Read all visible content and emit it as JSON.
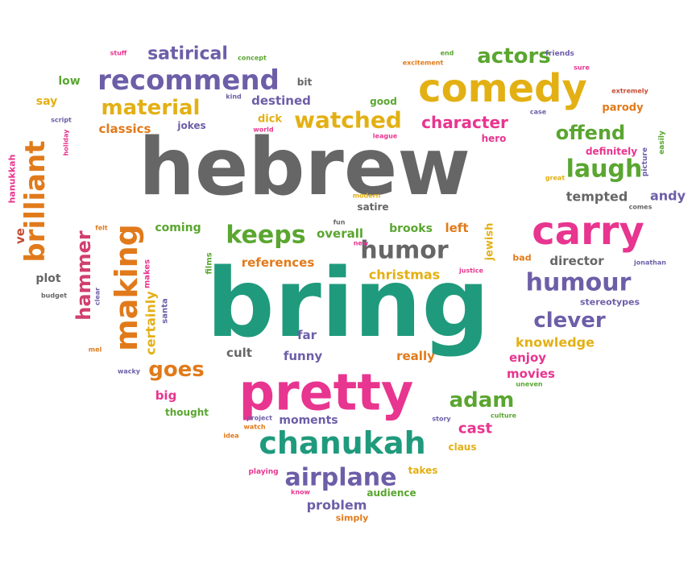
{
  "palette": {
    "gray": "#666666",
    "teal": "#1f9a7c",
    "pink": "#e8358f",
    "orange": "#e17a1a",
    "purple": "#6d5ea8",
    "gold": "#e3b014",
    "green": "#5aa630",
    "rose": "#d13f6e",
    "red": "#c54b33"
  },
  "words": [
    {
      "text": "hebrew",
      "color": "gray"
    },
    {
      "text": "bring",
      "color": "teal"
    },
    {
      "text": "pretty",
      "color": "pink"
    },
    {
      "text": "comedy",
      "color": "gold"
    },
    {
      "text": "carry",
      "color": "pink"
    },
    {
      "text": "chanukah",
      "color": "teal"
    },
    {
      "text": "recommend",
      "color": "purple"
    },
    {
      "text": "brilliant",
      "color": "orange"
    },
    {
      "text": "making",
      "color": "orange"
    },
    {
      "text": "watched",
      "color": "gold"
    },
    {
      "text": "humour",
      "color": "purple"
    },
    {
      "text": "airplane",
      "color": "purple"
    },
    {
      "text": "hammer",
      "color": "rose"
    },
    {
      "text": "laugh",
      "color": "green"
    },
    {
      "text": "material",
      "color": "gold"
    },
    {
      "text": "keeps",
      "color": "green"
    },
    {
      "text": "humor",
      "color": "gray"
    },
    {
      "text": "clever",
      "color": "purple"
    },
    {
      "text": "goes",
      "color": "orange"
    },
    {
      "text": "offend",
      "color": "green"
    },
    {
      "text": "actors",
      "color": "green"
    },
    {
      "text": "satirical",
      "color": "purple"
    },
    {
      "text": "character",
      "color": "pink"
    },
    {
      "text": "adam",
      "color": "green"
    },
    {
      "text": "certainly",
      "color": "gold"
    },
    {
      "text": "references",
      "color": "orange"
    },
    {
      "text": "christmas",
      "color": "gold"
    },
    {
      "text": "knowledge",
      "color": "gold"
    },
    {
      "text": "destined",
      "color": "purple"
    },
    {
      "text": "classics",
      "color": "orange"
    },
    {
      "text": "tempted",
      "color": "gray"
    },
    {
      "text": "andy",
      "color": "purple"
    },
    {
      "text": "director",
      "color": "gray"
    },
    {
      "text": "overall",
      "color": "green"
    },
    {
      "text": "brooks",
      "color": "green"
    },
    {
      "text": "left",
      "color": "orange"
    },
    {
      "text": "jewish",
      "color": "gold"
    },
    {
      "text": "coming",
      "color": "green"
    },
    {
      "text": "cast",
      "color": "pink"
    },
    {
      "text": "problem",
      "color": "purple"
    },
    {
      "text": "big",
      "color": "pink"
    },
    {
      "text": "funny",
      "color": "purple"
    },
    {
      "text": "cult",
      "color": "gray"
    },
    {
      "text": "far",
      "color": "purple"
    },
    {
      "text": "really",
      "color": "orange"
    },
    {
      "text": "enjoy",
      "color": "pink"
    },
    {
      "text": "movies",
      "color": "pink"
    },
    {
      "text": "moments",
      "color": "purple"
    },
    {
      "text": "low",
      "color": "green"
    },
    {
      "text": "say",
      "color": "gold"
    },
    {
      "text": "dick",
      "color": "gold"
    },
    {
      "text": "plot",
      "color": "gray"
    },
    {
      "text": "jokes",
      "color": "purple"
    },
    {
      "text": "parody",
      "color": "orange"
    },
    {
      "text": "definitely",
      "color": "pink"
    },
    {
      "text": "good",
      "color": "green"
    },
    {
      "text": "hero",
      "color": "pink"
    },
    {
      "text": "satire",
      "color": "gray"
    },
    {
      "text": "stereotypes",
      "color": "purple"
    },
    {
      "text": "ve",
      "color": "red"
    },
    {
      "text": "bit",
      "color": "gray"
    },
    {
      "text": "thought",
      "color": "green"
    },
    {
      "text": "claus",
      "color": "gold"
    },
    {
      "text": "takes",
      "color": "gold"
    },
    {
      "text": "audience",
      "color": "green"
    },
    {
      "text": "simply",
      "color": "orange"
    },
    {
      "text": "bad",
      "color": "orange"
    },
    {
      "text": "hanukkah",
      "color": "pink"
    },
    {
      "text": "films",
      "color": "green"
    },
    {
      "text": "makes",
      "color": "pink"
    },
    {
      "text": "santa",
      "color": "purple"
    },
    {
      "text": "playing",
      "color": "pink"
    },
    {
      "text": "know",
      "color": "pink"
    },
    {
      "text": "friends",
      "color": "purple"
    },
    {
      "text": "sure",
      "color": "pink"
    },
    {
      "text": "extremely",
      "color": "red"
    },
    {
      "text": "case",
      "color": "purple"
    },
    {
      "text": "easily",
      "color": "green"
    },
    {
      "text": "picture",
      "color": "purple"
    },
    {
      "text": "great",
      "color": "gold"
    },
    {
      "text": "comes",
      "color": "gray"
    },
    {
      "text": "jonathan",
      "color": "purple"
    },
    {
      "text": "modern",
      "color": "gold"
    },
    {
      "text": "fun",
      "color": "gray"
    },
    {
      "text": "new",
      "color": "pink"
    },
    {
      "text": "justice",
      "color": "pink"
    },
    {
      "text": "uneven",
      "color": "green"
    },
    {
      "text": "culture",
      "color": "green"
    },
    {
      "text": "story",
      "color": "purple"
    },
    {
      "text": "project",
      "color": "purple"
    },
    {
      "text": "watch",
      "color": "orange"
    },
    {
      "text": "idea",
      "color": "orange"
    },
    {
      "text": "wacky",
      "color": "purple"
    },
    {
      "text": "mel",
      "color": "orange"
    },
    {
      "text": "budget",
      "color": "gray"
    },
    {
      "text": "clear",
      "color": "purple"
    },
    {
      "text": "felt",
      "color": "orange"
    },
    {
      "text": "script",
      "color": "purple"
    },
    {
      "text": "holiday",
      "color": "pink"
    },
    {
      "text": "kind",
      "color": "purple"
    },
    {
      "text": "world",
      "color": "pink"
    },
    {
      "text": "league",
      "color": "pink"
    },
    {
      "text": "stuff",
      "color": "pink"
    },
    {
      "text": "concept",
      "color": "green"
    },
    {
      "text": "end",
      "color": "green"
    },
    {
      "text": "excitement",
      "color": "orange"
    }
  ]
}
